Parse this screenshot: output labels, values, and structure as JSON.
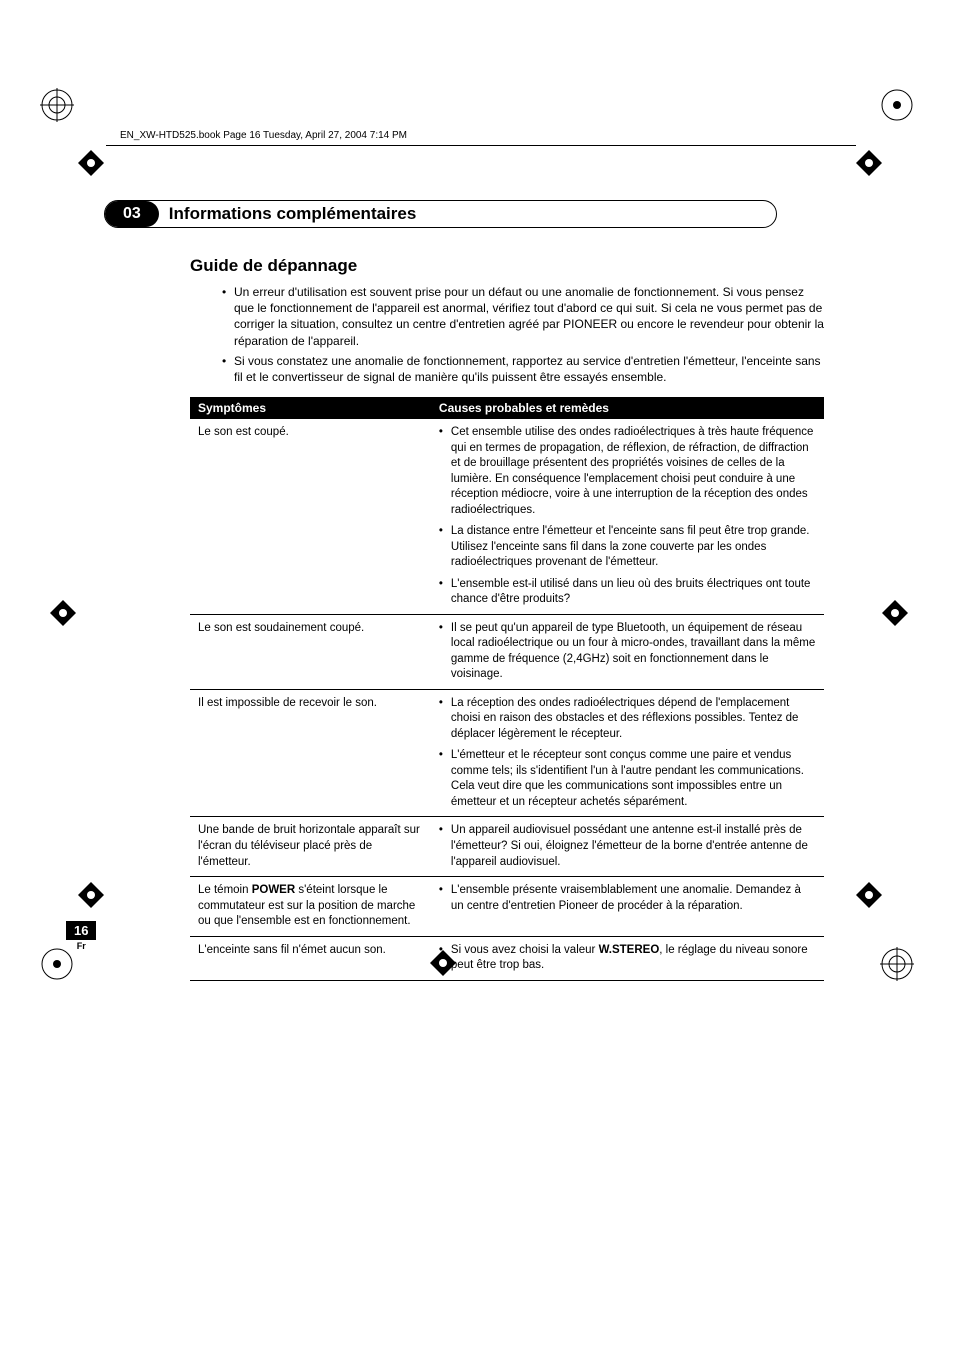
{
  "header_path": "EN_XW-HTD525.book  Page 16  Tuesday, April 27, 2004  7:14 PM",
  "chapter": {
    "num": "03",
    "title": "Informations complémentaires"
  },
  "section_title": "Guide de dépannage",
  "intro_bullets": [
    "Un erreur d'utilisation est souvent prise pour un défaut ou une anomalie de fonctionnement. Si vous pensez que le fonctionnement de l'appareil est anormal, vérifiez tout d'abord ce qui suit. Si cela ne vous permet pas de corriger la situation, consultez un centre d'entretien agréé par PIONEER ou encore le revendeur pour obtenir la réparation de l'appareil.",
    "Si vous constatez une anomalie de fonctionnement, rapportez au service d'entretien l'émetteur, l'enceinte sans fil et le convertisseur de signal de manière qu'ils puissent être essayés ensemble."
  ],
  "table": {
    "header": {
      "symptoms": "Symptômes",
      "causes": "Causes probables et remèdes"
    },
    "rows": [
      {
        "symptom": "Le son est coupé.",
        "causes": [
          "Cet ensemble utilise des ondes radioélectriques à très haute fréquence qui en termes de propagation, de réflexion, de réfraction, de diffraction et de brouillage présentent des propriétés voisines de celles de la lumière. En conséquence l'emplacement choisi peut conduire à une réception médiocre, voire à une interruption de la réception des ondes radioélectriques.",
          "La distance entre l'émetteur et l'enceinte sans fil peut être trop grande. Utilisez l'enceinte sans fil dans la zone couverte par les ondes radioélectriques provenant de l'émetteur.",
          "L'ensemble est-il utilisé dans un lieu où des bruits électriques ont toute chance d'être produits?"
        ]
      },
      {
        "symptom": "Le son est soudainement coupé.",
        "causes": [
          "Il se peut qu'un appareil de type Bluetooth, un équipement de réseau local radioélectrique ou un four à micro-ondes, travaillant dans la même gamme de fréquence (2,4GHz) soit en fonctionnement dans le voisinage."
        ]
      },
      {
        "symptom": "Il est impossible de recevoir le son.",
        "causes": [
          "La réception des ondes radioélectriques dépend de l'emplacement choisi en raison des obstacles et des réflexions possibles. Tentez de déplacer légèrement le récepteur.",
          "L'émetteur et le récepteur sont conçus comme une paire et vendus comme tels; ils s'identifient l'un à l'autre pendant les communications. Cela veut dire que les communications sont impossibles entre un émetteur et un récepteur achetés séparément."
        ]
      },
      {
        "symptom": "Une bande de bruit horizontale apparaît sur l'écran du téléviseur placé près de l'émetteur.",
        "causes": [
          "Un appareil audiovisuel possédant une antenne est-il installé près de l'émetteur? Si oui, éloignez l'émetteur de la borne d'entrée antenne de l'appareil audiovisuel."
        ]
      },
      {
        "symptom_html": "Le témoin <b>POWER</b> s'éteint lorsque le commutateur est sur la position de marche ou que l'ensemble est en fonctionnement.",
        "causes": [
          "L'ensemble présente vraisemblablement une anomalie. Demandez à un centre d'entretien Pioneer de procéder à la réparation."
        ]
      },
      {
        "symptom": "L'enceinte sans fil n'émet aucun son.",
        "causes_html": [
          "Si vous avez choisi la valeur <b>W.STEREO</b>, le réglage du niveau sonore peut être trop bas."
        ]
      }
    ]
  },
  "pagenum": {
    "n": "16",
    "lang": "Fr"
  },
  "colors": {
    "text": "#000000",
    "bg": "#ffffff",
    "header_bg": "#000000",
    "header_fg": "#ffffff"
  }
}
